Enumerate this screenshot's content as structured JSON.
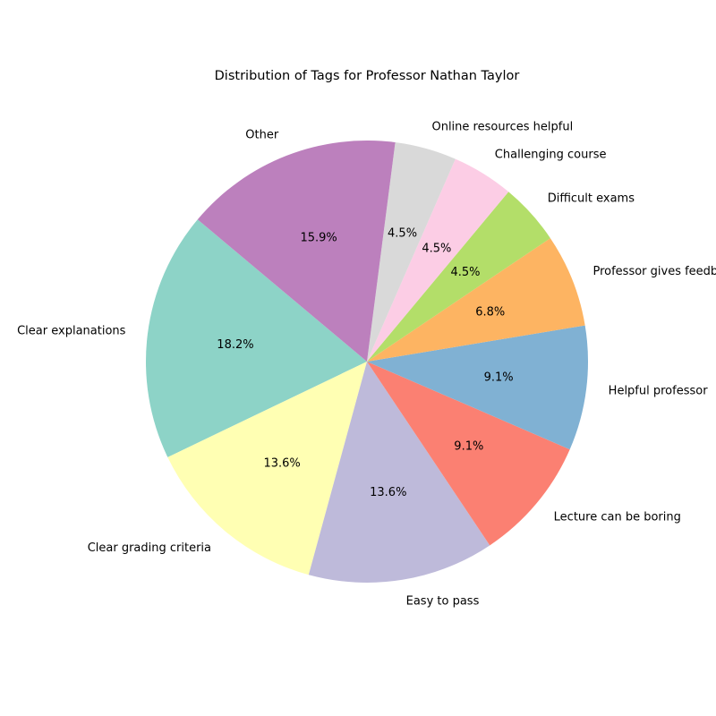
{
  "chart_data": {
    "type": "pie",
    "title": "Distribution of Tags for Professor Nathan Taylor",
    "start_angle_deg": 140,
    "direction": "counterclockwise",
    "slices": [
      {
        "label": "Clear explanations",
        "value": 18.2,
        "pct_label": "18.2%",
        "color": "#8dd3c7"
      },
      {
        "label": "Clear grading criteria",
        "value": 13.6,
        "pct_label": "13.6%",
        "color": "#ffffb3"
      },
      {
        "label": "Easy to pass",
        "value": 13.6,
        "pct_label": "13.6%",
        "color": "#bebada"
      },
      {
        "label": "Lecture can be boring",
        "value": 9.1,
        "pct_label": "9.1%",
        "color": "#fb8072"
      },
      {
        "label": "Helpful professor",
        "value": 9.1,
        "pct_label": "9.1%",
        "color": "#80b1d3"
      },
      {
        "label": "Professor gives feedback",
        "value": 6.8,
        "pct_label": "6.8%",
        "color": "#fdb462"
      },
      {
        "label": "Difficult exams",
        "value": 4.5,
        "pct_label": "4.5%",
        "color": "#b3de69"
      },
      {
        "label": "Challenging course",
        "value": 4.5,
        "pct_label": "4.5%",
        "color": "#fccde5"
      },
      {
        "label": "Online resources helpful",
        "value": 4.5,
        "pct_label": "4.5%",
        "color": "#d9d9d9"
      },
      {
        "label": "Other",
        "value": 15.9,
        "pct_label": "15.9%",
        "color": "#bc80bd"
      }
    ]
  }
}
